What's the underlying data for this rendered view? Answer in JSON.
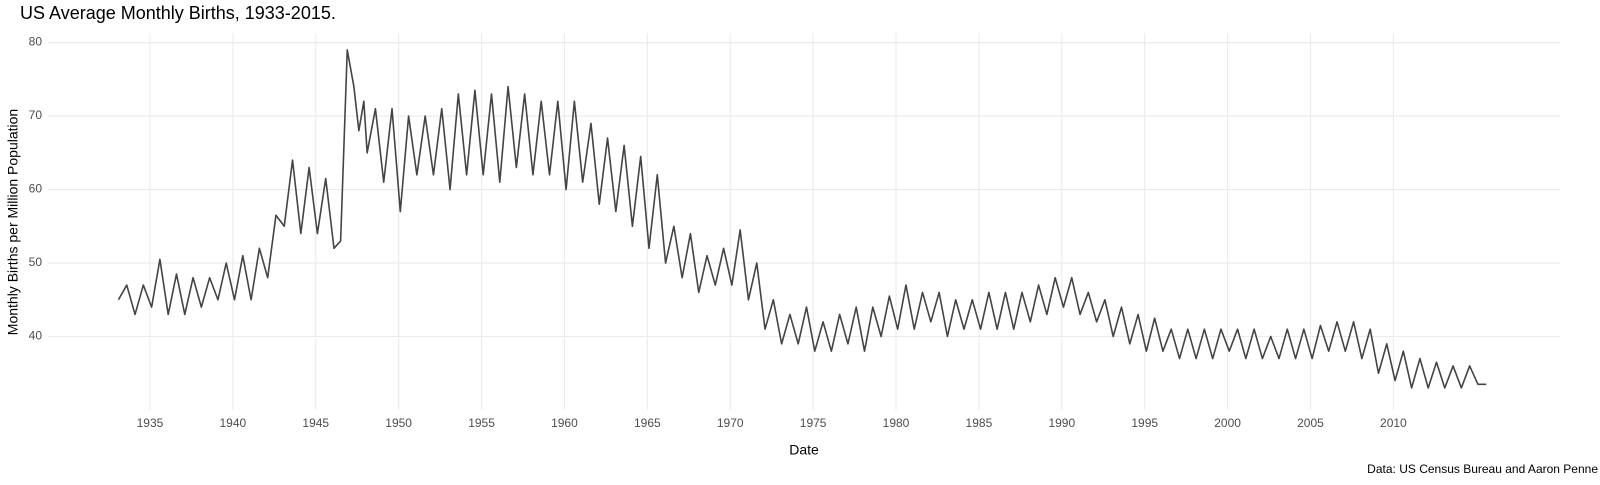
{
  "chart_data": {
    "type": "line",
    "title": "US Average Monthly Births, 1933-2015.",
    "x_label": "Date",
    "y_label": "Monthly Births per Million Population",
    "caption": "Data: US Census Bureau and Aaron Penne",
    "grid": true,
    "xlim": [
      1928.85,
      2020.05
    ],
    "xticks": [
      1935,
      1940,
      1945,
      1950,
      1955,
      1960,
      1965,
      1970,
      1975,
      1980,
      1985,
      1990,
      1995,
      2000,
      2005,
      2010
    ],
    "ylim": [
      30,
      81.3
    ],
    "yticks": [
      40,
      50,
      60,
      70,
      80
    ],
    "x": [
      1933.1,
      1933.6,
      1934.1,
      1934.6,
      1935.1,
      1935.6,
      1936.1,
      1936.6,
      1937.1,
      1937.6,
      1938.1,
      1938.6,
      1939.1,
      1939.6,
      1940.1,
      1940.6,
      1941.1,
      1941.6,
      1942.1,
      1942.6,
      1943.1,
      1943.6,
      1944.1,
      1944.6,
      1945.1,
      1945.6,
      1946.1,
      1946.5,
      1946.9,
      1947.3,
      1947.6,
      1947.9,
      1948.1,
      1948.6,
      1949.1,
      1949.6,
      1950.1,
      1950.6,
      1951.1,
      1951.6,
      1952.1,
      1952.6,
      1953.1,
      1953.6,
      1954.1,
      1954.6,
      1955.1,
      1955.6,
      1956.1,
      1956.6,
      1957.1,
      1957.6,
      1958.1,
      1958.6,
      1959.1,
      1959.6,
      1960.1,
      1960.6,
      1961.1,
      1961.6,
      1962.1,
      1962.6,
      1963.1,
      1963.6,
      1964.1,
      1964.6,
      1965.1,
      1965.6,
      1966.1,
      1966.6,
      1967.1,
      1967.6,
      1968.1,
      1968.6,
      1969.1,
      1969.6,
      1970.1,
      1970.6,
      1971.1,
      1971.6,
      1972.1,
      1972.6,
      1973.1,
      1973.6,
      1974.1,
      1974.6,
      1975.1,
      1975.6,
      1976.1,
      1976.6,
      1977.1,
      1977.6,
      1978.1,
      1978.6,
      1979.1,
      1979.6,
      1980.1,
      1980.6,
      1981.1,
      1981.6,
      1982.1,
      1982.6,
      1983.1,
      1983.6,
      1984.1,
      1984.6,
      1985.1,
      1985.6,
      1986.1,
      1986.6,
      1987.1,
      1987.6,
      1988.1,
      1988.6,
      1989.1,
      1989.6,
      1990.1,
      1990.6,
      1991.1,
      1991.6,
      1992.1,
      1992.6,
      1993.1,
      1993.6,
      1994.1,
      1994.6,
      1995.1,
      1995.6,
      1996.1,
      1996.6,
      1997.1,
      1997.6,
      1998.1,
      1998.6,
      1999.1,
      1999.6,
      2000.1,
      2000.6,
      2001.1,
      2001.6,
      2002.1,
      2002.6,
      2003.1,
      2003.6,
      2004.1,
      2004.6,
      2005.1,
      2005.6,
      2006.1,
      2006.6,
      2007.1,
      2007.6,
      2008.1,
      2008.6,
      2009.1,
      2009.6,
      2010.1,
      2010.6,
      2011.1,
      2011.6,
      2012.1,
      2012.6,
      2013.1,
      2013.6,
      2014.1,
      2014.6,
      2015.1,
      2015.6
    ],
    "series": [
      {
        "name": "Births",
        "color": "#444444",
        "values": [
          45,
          47,
          43,
          47,
          44,
          50.5,
          43,
          48.5,
          43,
          48,
          44,
          48,
          45,
          50,
          45,
          51,
          45,
          52,
          48,
          56.5,
          55,
          64,
          54,
          63,
          54,
          61.5,
          52,
          53,
          79,
          74,
          68,
          72,
          65,
          71,
          61,
          71,
          57,
          70,
          62,
          70,
          62,
          71,
          60,
          73,
          62,
          73.5,
          62,
          73,
          61,
          74,
          63,
          73,
          62,
          72,
          62,
          72,
          60,
          72,
          61,
          69,
          58,
          67,
          57,
          66,
          55,
          64.5,
          52,
          62,
          50,
          55,
          48,
          54,
          46,
          51,
          47,
          52,
          47,
          54.5,
          45,
          50,
          41,
          45,
          39,
          43,
          39,
          44,
          38,
          42,
          38,
          43,
          39,
          44,
          38,
          44,
          40,
          45.5,
          41,
          47,
          41,
          46,
          42,
          46,
          40,
          45,
          41,
          45,
          41,
          46,
          41,
          46,
          41,
          46,
          42,
          47,
          43,
          48,
          44,
          48,
          43,
          46,
          42,
          45,
          40,
          44,
          39,
          43,
          38,
          42.5,
          38,
          41,
          37,
          41,
          37,
          41,
          37,
          41,
          38,
          41,
          37,
          41,
          37,
          40,
          37,
          41,
          37,
          41,
          37,
          41.5,
          38,
          42,
          38,
          42,
          37,
          41,
          35,
          39,
          34,
          38,
          33,
          37,
          33,
          36.5,
          33,
          36,
          33,
          36,
          33.5,
          33.5
        ]
      }
    ]
  }
}
